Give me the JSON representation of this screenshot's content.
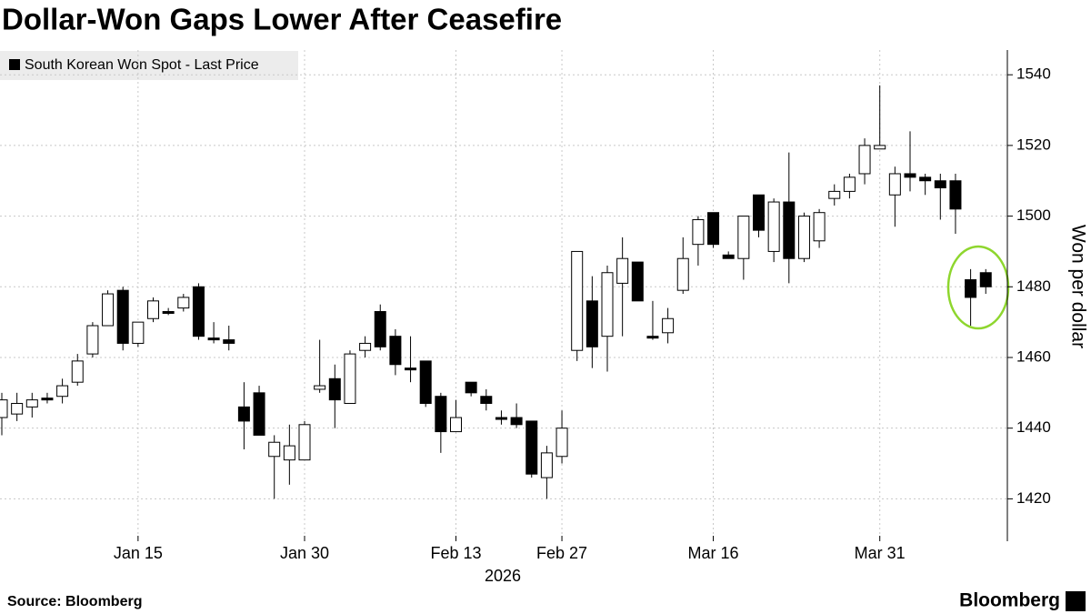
{
  "chart_data": {
    "type": "candlestick",
    "title": "Dollar-Won Gaps Lower After Ceasefire",
    "series_name": "South Korean Won Spot - Last Price",
    "y_axis_label": "Won per dollar",
    "x_sublabel": "2026",
    "source": "Source: Bloomberg",
    "brand": "Bloomberg",
    "categories": [
      null,
      null,
      null,
      null,
      null,
      null,
      null,
      null,
      null,
      "Jan 15",
      null,
      null,
      null,
      null,
      null,
      null,
      null,
      null,
      null,
      null,
      "Jan 30",
      null,
      null,
      null,
      null,
      null,
      null,
      null,
      null,
      null,
      "Feb 13",
      null,
      null,
      null,
      null,
      null,
      null,
      "Feb 27",
      null,
      null,
      null,
      null,
      null,
      null,
      null,
      null,
      null,
      "Mar 16",
      null,
      null,
      null,
      null,
      null,
      null,
      null,
      null,
      null,
      null,
      "Mar 31",
      null,
      null,
      null,
      null,
      null,
      null,
      null
    ],
    "open": [
      1443,
      1444,
      1446,
      1448.5,
      1449,
      1453,
      1461,
      1469,
      1479,
      1464,
      1471,
      1473,
      1474,
      1480,
      1465.5,
      1465,
      1446,
      1450,
      1432,
      1431,
      1431,
      1451,
      1454,
      1447,
      1462,
      1473,
      1466,
      1457,
      1459,
      1449,
      1439,
      1453,
      1449,
      1443,
      1443,
      1442,
      1426,
      1432,
      1462,
      1476,
      1466,
      1481,
      1487,
      1466,
      1467,
      1479,
      1492,
      1501,
      1489,
      1488,
      1506,
      1490,
      1504,
      1488,
      1493,
      1505,
      1507,
      1512,
      1519,
      1506,
      1512,
      1511,
      1510,
      1510,
      1482,
      1484
    ],
    "high": [
      1450,
      1450,
      1450,
      1450,
      1454,
      1461,
      1470,
      1479,
      1480,
      1470,
      1477,
      1474,
      1478,
      1481,
      1470,
      1469,
      1453,
      1452,
      1438,
      1441,
      1442,
      1465,
      1458,
      1462,
      1466,
      1475,
      1468,
      1466,
      1459,
      1450,
      1448,
      1453,
      1451,
      1445,
      1447,
      1442,
      1435,
      1445,
      1490,
      1483,
      1486,
      1494,
      1487,
      1476,
      1474,
      1494,
      1500,
      1501,
      1490,
      1500,
      1506,
      1505,
      1518,
      1501,
      1502,
      1509,
      1512,
      1522,
      1537,
      1514,
      1524,
      1512,
      1512,
      1512,
      1485,
      1485
    ],
    "low": [
      1438,
      1442,
      1443,
      1447,
      1447,
      1452,
      1460,
      1469,
      1462,
      1463,
      1470,
      1472,
      1473,
      1465,
      1464,
      1462,
      1434,
      1438,
      1420,
      1424,
      1431,
      1450,
      1440,
      1447,
      1460,
      1462,
      1455,
      1453,
      1446,
      1433,
      1439,
      1449,
      1445,
      1441,
      1440,
      1426,
      1420,
      1430,
      1459,
      1457,
      1456,
      1466,
      1476,
      1465,
      1464,
      1478,
      1486,
      1491,
      1488,
      1482,
      1494,
      1487,
      1481,
      1487,
      1491,
      1503,
      1505,
      1509,
      1519,
      1497,
      1507,
      1506,
      1499,
      1495,
      1469,
      1478
    ],
    "close": [
      1448,
      1447,
      1448,
      1448.5,
      1452,
      1459,
      1469,
      1478,
      1464,
      1470,
      1476,
      1473,
      1477,
      1466,
      1465.5,
      1464,
      1442,
      1438,
      1436,
      1435,
      1441,
      1452,
      1448,
      1461,
      1464,
      1463,
      1458,
      1457,
      1447,
      1439,
      1443,
      1450,
      1447,
      1443,
      1441,
      1427,
      1433,
      1440,
      1490,
      1463,
      1484,
      1488,
      1476,
      1466,
      1471,
      1488,
      1499,
      1492,
      1488,
      1500,
      1496,
      1504,
      1488,
      1500,
      1501,
      1507,
      1511,
      1520,
      1520,
      1512,
      1511,
      1510,
      1508,
      1502,
      1477,
      1480
    ],
    "up_color": "#ffffff",
    "down_color": "#000000",
    "ylim": [
      1408,
      1547
    ],
    "yticks": [
      1420,
      1440,
      1460,
      1480,
      1500,
      1520,
      1540
    ],
    "grid": true
  }
}
